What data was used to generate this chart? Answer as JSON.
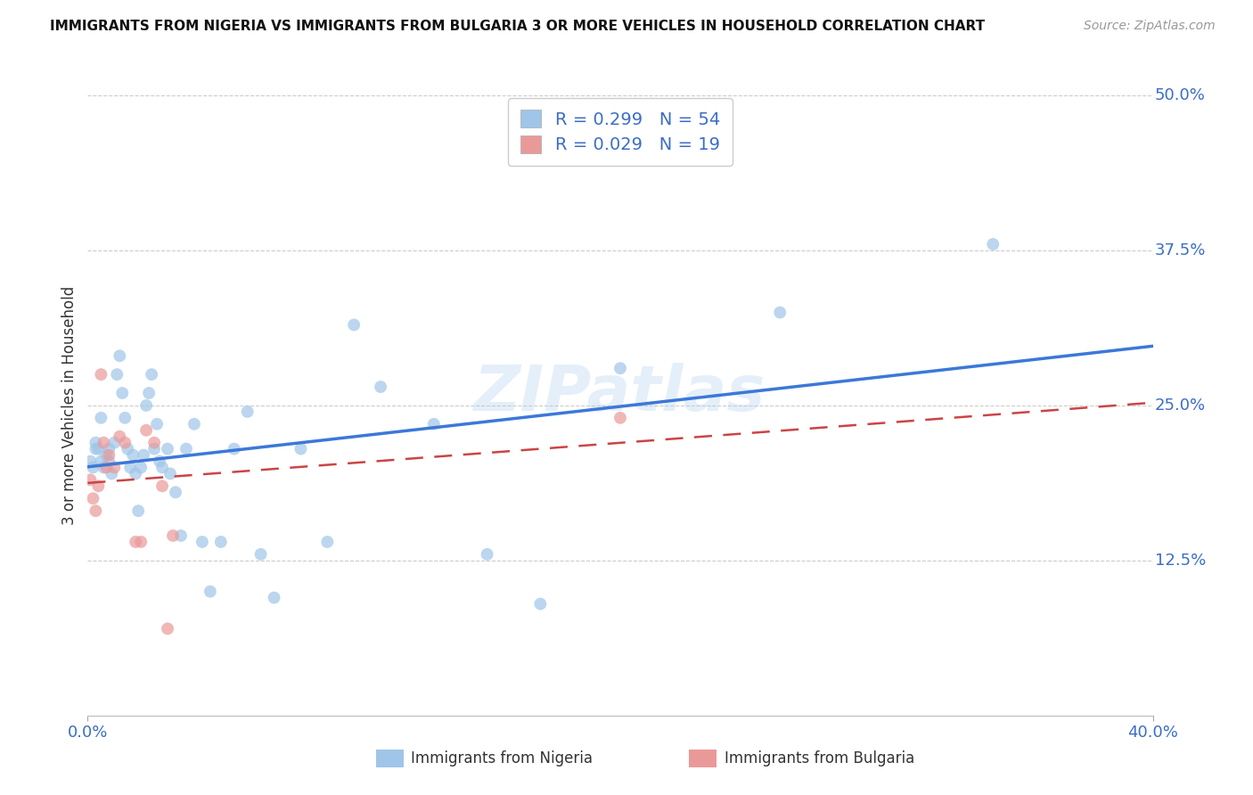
{
  "title": "IMMIGRANTS FROM NIGERIA VS IMMIGRANTS FROM BULGARIA 3 OR MORE VEHICLES IN HOUSEHOLD CORRELATION CHART",
  "source": "Source: ZipAtlas.com",
  "ylabel": "3 or more Vehicles in Household",
  "xlim": [
    0.0,
    0.4
  ],
  "ylim": [
    0.0,
    0.5
  ],
  "legend1_label": "Immigrants from Nigeria",
  "legend2_label": "Immigrants from Bulgaria",
  "R1": 0.299,
  "N1": 54,
  "R2": 0.029,
  "N2": 19,
  "color_nigeria": "#9fc5e8",
  "color_bulgaria": "#ea9999",
  "color_nigeria_line": "#3c78d8",
  "color_bulgaria_line": "#cc4444",
  "nigeria_x": [
    0.001,
    0.002,
    0.003,
    0.003,
    0.004,
    0.005,
    0.005,
    0.006,
    0.007,
    0.008,
    0.008,
    0.009,
    0.01,
    0.011,
    0.012,
    0.013,
    0.014,
    0.015,
    0.016,
    0.017,
    0.018,
    0.019,
    0.02,
    0.021,
    0.022,
    0.023,
    0.024,
    0.025,
    0.026,
    0.027,
    0.028,
    0.03,
    0.031,
    0.033,
    0.035,
    0.037,
    0.04,
    0.043,
    0.046,
    0.05,
    0.055,
    0.06,
    0.065,
    0.07,
    0.08,
    0.09,
    0.1,
    0.11,
    0.13,
    0.15,
    0.17,
    0.2,
    0.26,
    0.34
  ],
  "nigeria_y": [
    0.205,
    0.2,
    0.215,
    0.22,
    0.215,
    0.205,
    0.24,
    0.2,
    0.21,
    0.215,
    0.205,
    0.195,
    0.22,
    0.275,
    0.29,
    0.26,
    0.24,
    0.215,
    0.2,
    0.21,
    0.195,
    0.165,
    0.2,
    0.21,
    0.25,
    0.26,
    0.275,
    0.215,
    0.235,
    0.205,
    0.2,
    0.215,
    0.195,
    0.18,
    0.145,
    0.215,
    0.235,
    0.14,
    0.1,
    0.14,
    0.215,
    0.245,
    0.13,
    0.095,
    0.215,
    0.14,
    0.315,
    0.265,
    0.235,
    0.13,
    0.09,
    0.28,
    0.325,
    0.38
  ],
  "bulgaria_x": [
    0.001,
    0.002,
    0.003,
    0.004,
    0.005,
    0.006,
    0.007,
    0.008,
    0.01,
    0.012,
    0.014,
    0.018,
    0.02,
    0.022,
    0.025,
    0.028,
    0.03,
    0.032,
    0.2
  ],
  "bulgaria_y": [
    0.19,
    0.175,
    0.165,
    0.185,
    0.275,
    0.22,
    0.2,
    0.21,
    0.2,
    0.225,
    0.22,
    0.14,
    0.14,
    0.23,
    0.22,
    0.185,
    0.07,
    0.145,
    0.24
  ]
}
